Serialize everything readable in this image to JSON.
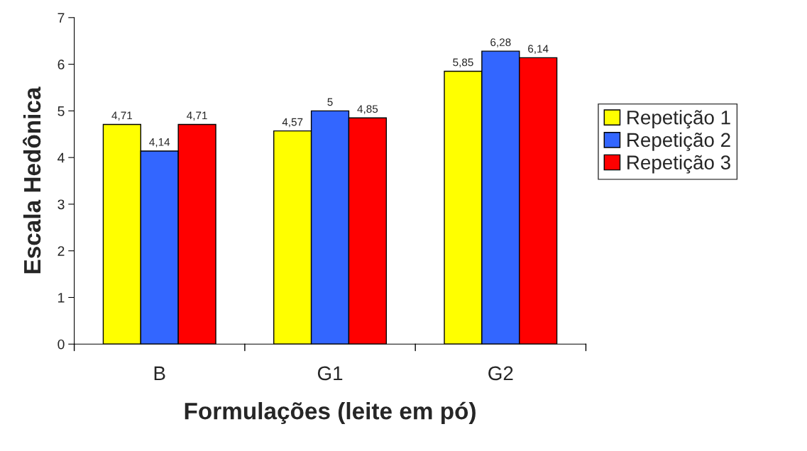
{
  "chart_data": {
    "type": "bar",
    "xlabel": "Formulações (leite em pó)",
    "ylabel": "Escala Hedônica",
    "categories": [
      "B",
      "G1",
      "G2"
    ],
    "series": [
      {
        "name": "Repetição 1",
        "color": "#ffff00",
        "values": [
          4.71,
          4.57,
          5.85
        ],
        "value_labels": [
          "4,71",
          "4,57",
          "5,85"
        ]
      },
      {
        "name": "Repetição 2",
        "color": "#3366ff",
        "values": [
          4.14,
          5,
          6.28
        ],
        "value_labels": [
          "4,14",
          "5",
          "6,28"
        ]
      },
      {
        "name": "Repetição 3",
        "color": "#ff0000",
        "values": [
          4.71,
          4.85,
          6.14
        ],
        "value_labels": [
          "4,71",
          "4,85",
          "6,14"
        ]
      }
    ],
    "ylim": [
      0,
      7
    ],
    "yticks": [
      0,
      1,
      2,
      3,
      4,
      5,
      6,
      7
    ],
    "grid": false,
    "legend": "right"
  }
}
